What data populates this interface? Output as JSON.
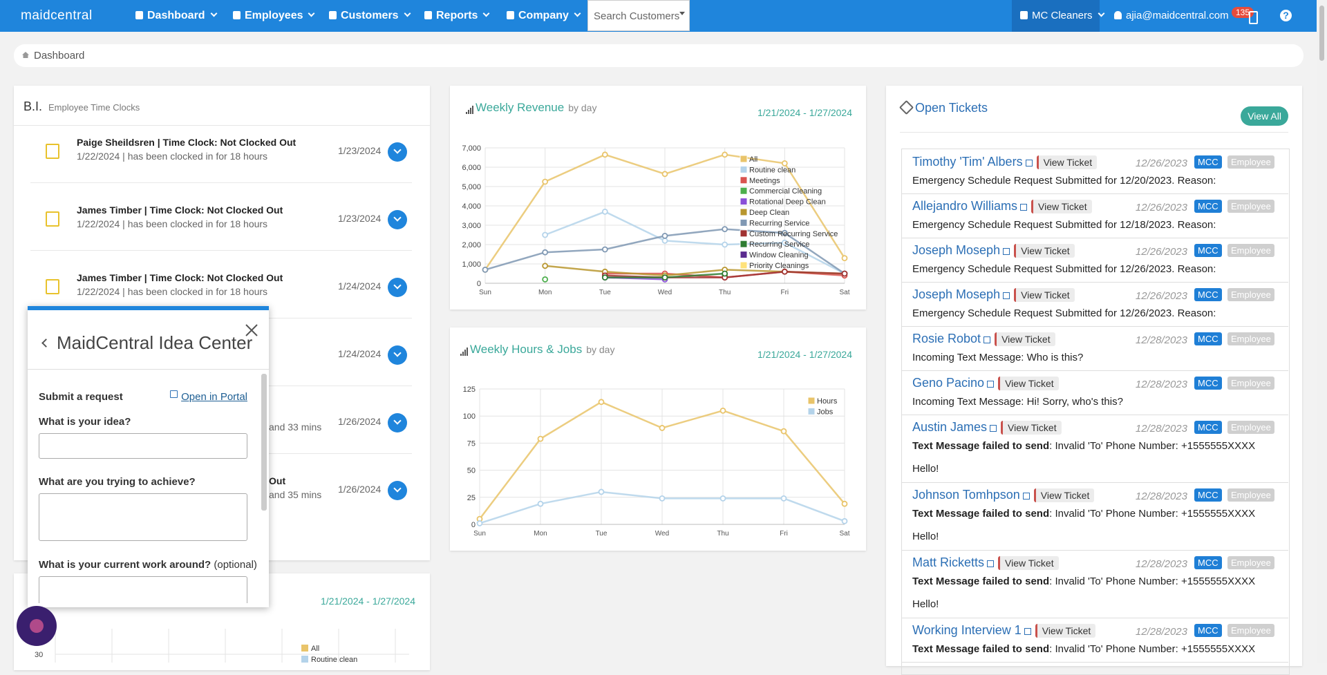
{
  "nav": {
    "logo": "maidcentral",
    "menu": [
      "Dashboard",
      "Employees",
      "Customers",
      "Reports",
      "Company"
    ],
    "search_placeholder": "Search Customers",
    "company": "MC Cleaners",
    "user": "ajia@maidcentral.com",
    "badge": "135",
    "help": "?"
  },
  "breadcrumb": "Dashboard",
  "time_clocks": {
    "title": "B.I.",
    "subtitle": "Employee Time Clocks",
    "items": [
      {
        "title": "Paige Sheildsren | Time Clock: Not Clocked Out",
        "detail": "1/22/2024 | has been clocked in for 18 hours",
        "date": "1/23/2024"
      },
      {
        "title": "James Timber | Time Clock: Not Clocked Out",
        "detail": "1/22/2024 | has been clocked in for 18 hours",
        "date": "1/23/2024"
      },
      {
        "title": "James Timber | Time Clock: Not Clocked Out",
        "detail": "1/22/2024 | has been clocked in for 18 hours",
        "date": "1/24/2024"
      },
      {
        "date": "1/24/2024"
      },
      {
        "detail": "and 33 mins",
        "date": "1/26/2024"
      },
      {
        "title": "Out",
        "detail": "and 35 mins",
        "date": "1/26/2024"
      }
    ]
  },
  "weekly_revenue": {
    "type": "line",
    "title": "Weekly Revenue",
    "subtitle": "by day",
    "date_range": "1/21/2024 - 1/27/2024",
    "categories": [
      "Sun",
      "Mon",
      "Tue",
      "Wed",
      "Thu",
      "Fri",
      "Sat"
    ],
    "ylim": [
      0,
      7000
    ],
    "yticks": [
      0,
      {
        "value": 1000,
        "label": "1,000"
      },
      {
        "value": 2000,
        "label": "2,000"
      },
      {
        "value": 3000,
        "label": "3,000"
      },
      {
        "value": 4000,
        "label": "4,000"
      },
      {
        "value": 5000,
        "label": "5,000"
      },
      {
        "value": 6000,
        "label": "6,000"
      },
      {
        "value": 7000,
        "label": "7,000"
      }
    ],
    "grid": true,
    "series": [
      {
        "name": "All",
        "color": "#e9c46a",
        "values": [
          700,
          5250,
          6650,
          5650,
          6650,
          6200,
          1300
        ]
      },
      {
        "name": "Routine clean",
        "color": "#b4d3ea",
        "values": [
          null,
          2500,
          3700,
          2200,
          2000,
          2100,
          500
        ]
      },
      {
        "name": "Meetings",
        "color": "#d9534f",
        "values": [
          null,
          null,
          500,
          500,
          300,
          600,
          400
        ]
      },
      {
        "name": "Commercial Cleaning",
        "color": "#4cae4c",
        "values": [
          null,
          200,
          null,
          null,
          400,
          null,
          null
        ]
      },
      {
        "name": "Rotational Deep Clean",
        "color": "#8a4fd8",
        "values": [
          null,
          null,
          300,
          200,
          null,
          null,
          null
        ]
      },
      {
        "name": "Deep Clean",
        "color": "#b8962e",
        "values": [
          null,
          900,
          600,
          400,
          700,
          600,
          500
        ]
      },
      {
        "name": "Recurring Service",
        "color": "#7f98b3",
        "values": [
          700,
          1600,
          1750,
          2450,
          2800,
          2600,
          500
        ]
      },
      {
        "name": "Custom Recurring Service",
        "color": "#a03232",
        "values": [
          null,
          null,
          400,
          300,
          300,
          600,
          500
        ]
      },
      {
        "name": "Recurring Service",
        "color": "#2e7d32",
        "values": [
          null,
          null,
          300,
          300,
          500,
          null,
          null
        ]
      },
      {
        "name": "Window Cleaning",
        "color": "#5b2c8f",
        "values": [
          null,
          null,
          null,
          null,
          null,
          null,
          null
        ]
      },
      {
        "name": "Priority Cleanings",
        "color": "#ffe27a",
        "values": [
          null,
          null,
          null,
          null,
          null,
          null,
          null
        ]
      }
    ]
  },
  "weekly_hours_jobs": {
    "type": "line",
    "title": "Weekly Hours & Jobs",
    "subtitle": "by day",
    "date_range": "1/21/2024 - 1/27/2024",
    "categories": [
      "Sun",
      "Mon",
      "Tue",
      "Wed",
      "Thu",
      "Fri",
      "Sat"
    ],
    "ylim": [
      0,
      125
    ],
    "yticks": [
      0,
      25,
      50,
      75,
      100,
      125
    ],
    "grid": true,
    "series": [
      {
        "name": "Hours",
        "color": "#e9c46a",
        "values": [
          5,
          79,
          113,
          89,
          105,
          86,
          19
        ]
      },
      {
        "name": "Jobs",
        "color": "#b4d3ea",
        "values": [
          1,
          19,
          30,
          24,
          24,
          24,
          3
        ]
      }
    ]
  },
  "weekly_partial": {
    "date_range": "1/21/2024 - 1/27/2024",
    "yticks": [
      30
    ],
    "legend": [
      "All",
      "Routine clean"
    ]
  },
  "open_tickets": {
    "title": "Open Tickets",
    "view_all": "View All",
    "view_ticket": "View Ticket",
    "tags": [
      "MCC",
      "Employee"
    ],
    "items": [
      {
        "name": "Timothy 'Tim' Albers",
        "date": "12/26/2023",
        "message": "Emergency Schedule Request Submitted for 12/20/2023. Reason:"
      },
      {
        "name": "Allejandro Williams",
        "date": "12/26/2023",
        "message": "Emergency Schedule Request Submitted for 12/18/2023. Reason:"
      },
      {
        "name": "Joseph Moseph",
        "date": "12/26/2023",
        "message": "Emergency Schedule Request Submitted for 12/26/2023. Reason:"
      },
      {
        "name": "Joseph Moseph",
        "date": "12/26/2023",
        "message": "Emergency Schedule Request Submitted for 12/26/2023. Reason:"
      },
      {
        "name": "Rosie Robot",
        "date": "12/28/2023",
        "message": "Incoming Text Message: Who is this?"
      },
      {
        "name": "Geno Pacino",
        "date": "12/28/2023",
        "message": "Incoming Text Message: Hi! Sorry, who's this?"
      },
      {
        "name": "Austin James",
        "date": "12/28/2023",
        "message_bold": "Text Message failed to send",
        "message": ": Invalid 'To' Phone Number: +1555555XXXX",
        "extra": "Hello!"
      },
      {
        "name": "Johnson Tomhpson",
        "date": "12/28/2023",
        "message_bold": "Text Message failed to send",
        "message": ": Invalid 'To' Phone Number: +1555555XXXX",
        "extra": "Hello!"
      },
      {
        "name": "Matt Ricketts",
        "date": "12/28/2023",
        "message_bold": "Text Message failed to send",
        "message": ": Invalid 'To' Phone Number: +1555555XXXX",
        "extra": "Hello!"
      },
      {
        "name": "Working Interview 1",
        "date": "12/28/2023",
        "message_bold": "Text Message failed to send",
        "message": ": Invalid 'To' Phone Number: +1555555XXXX"
      }
    ]
  },
  "idea_center": {
    "title": "MaidCentral Idea Center",
    "submit": "Submit a request",
    "portal": "Open in Portal",
    "q1": "What is your idea?",
    "q2": "What are you trying to achieve?",
    "q3": "What is your current work around?",
    "q3_note": "(optional)"
  }
}
